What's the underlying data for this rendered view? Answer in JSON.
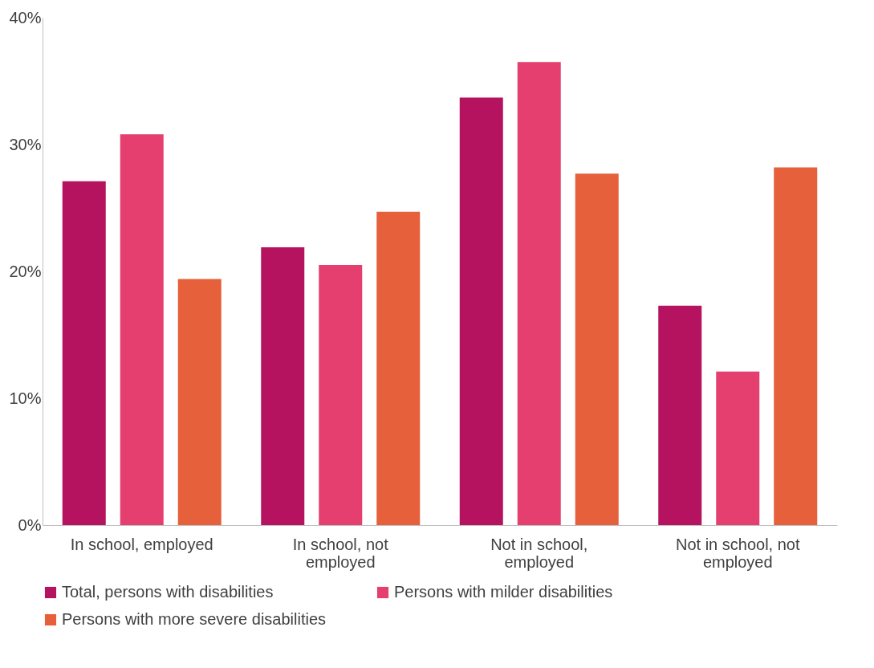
{
  "chart_data": {
    "type": "bar",
    "categories": [
      "In school, employed",
      "In school, not employed",
      "Not in school, employed",
      "Not in school, not employed"
    ],
    "series": [
      {
        "name": "Total, persons with disabilities",
        "color": "#b5135f",
        "values": [
          27.1,
          21.9,
          33.7,
          17.3
        ]
      },
      {
        "name": "Persons with milder disabilities",
        "color": "#e43f6f",
        "values": [
          30.8,
          20.5,
          36.5,
          12.1
        ]
      },
      {
        "name": "Persons with more severe disabilities",
        "color": "#e5603b",
        "values": [
          19.4,
          24.7,
          27.7,
          28.2
        ]
      }
    ],
    "ylim": [
      0,
      40
    ],
    "yticks": [
      {
        "value": 0,
        "label": "0%"
      },
      {
        "value": 10,
        "label": "10%"
      },
      {
        "value": 20,
        "label": "20%"
      },
      {
        "value": 30,
        "label": "30%"
      },
      {
        "value": 40,
        "label": "40%"
      }
    ],
    "grid": false,
    "legend": "bottom"
  }
}
